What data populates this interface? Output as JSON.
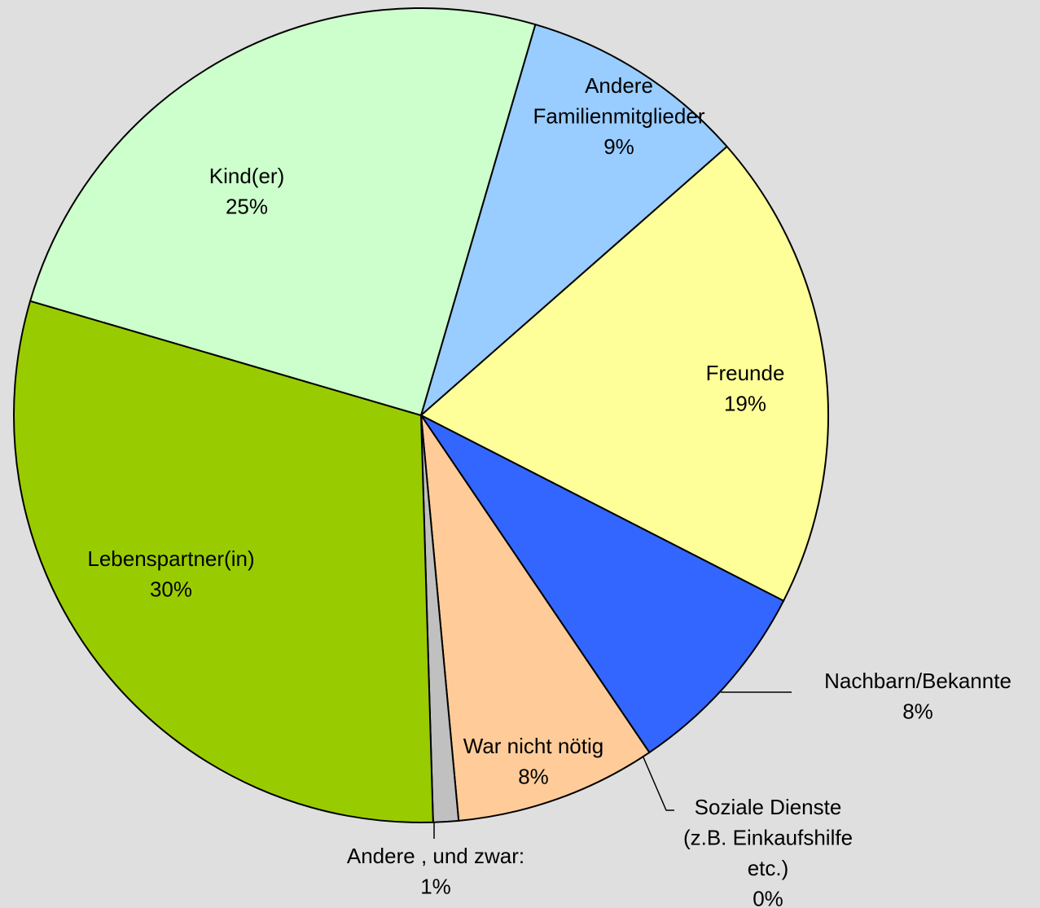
{
  "chart_data": {
    "type": "pie",
    "categories": [
      [
        "Andere",
        "Familienmitglieder"
      ],
      [
        "Freunde"
      ],
      [
        "Nachbarn/Bekannte"
      ],
      [
        "Soziale Dienste",
        "(z.B. Einkaufshilfe",
        "etc.)"
      ],
      [
        "War nicht nötig"
      ],
      [
        "Andere , und zwar:"
      ],
      [
        "Lebenspartner(in)"
      ],
      [
        "Kind(er)"
      ]
    ],
    "values": [
      9,
      19,
      8,
      0,
      8,
      1,
      30,
      25
    ],
    "value_labels": [
      "9%",
      "19%",
      "8%",
      "0%",
      "8%",
      "1%",
      "30%",
      "25%"
    ],
    "colors": [
      "#99ccff",
      "#ffff99",
      "#3366ff",
      "#993366",
      "#ffcc99",
      "#c0c0c0",
      "#99cc00",
      "#ccffcc"
    ]
  }
}
